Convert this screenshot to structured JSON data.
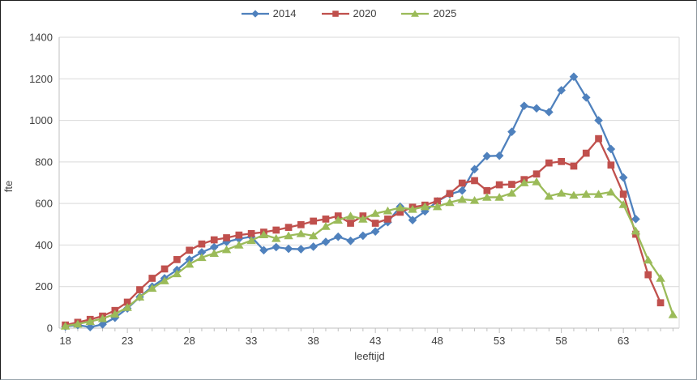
{
  "chart": {
    "legend": [
      {
        "label": "2014"
      },
      {
        "label": "2020"
      },
      {
        "label": "2025"
      }
    ],
    "colors": {
      "series_2014": "#4F81BD",
      "series_2020": "#C0504D",
      "series_2025": "#9BBB59",
      "gridline": "#d9d9d9",
      "axis_line": "#bfbfbf",
      "tick_text": "#404040"
    }
  },
  "chart_data": {
    "type": "line",
    "title": "",
    "xlabel": "leeftijd",
    "ylabel": "fte",
    "xlim": [
      17.5,
      67.5
    ],
    "ylim": [
      0,
      1400
    ],
    "xticks": [
      18,
      23,
      28,
      33,
      38,
      43,
      48,
      53,
      58,
      63
    ],
    "yticks": [
      0,
      200,
      400,
      600,
      800,
      1000,
      1200,
      1400
    ],
    "grid": "horizontal",
    "legend_position": "top",
    "x": [
      18,
      19,
      20,
      21,
      22,
      23,
      24,
      25,
      26,
      27,
      28,
      29,
      30,
      31,
      32,
      33,
      34,
      35,
      36,
      37,
      38,
      39,
      40,
      41,
      42,
      43,
      44,
      45,
      46,
      47,
      48,
      49,
      50,
      51,
      52,
      53,
      54,
      55,
      56,
      57,
      58,
      59,
      60,
      61,
      62,
      63,
      64,
      65,
      66,
      67
    ],
    "series": [
      {
        "name": "2014",
        "color": "#4F81BD",
        "marker": "diamond",
        "values": [
          8,
          15,
          5,
          18,
          50,
          95,
          150,
          200,
          240,
          280,
          330,
          365,
          390,
          415,
          430,
          440,
          375,
          390,
          382,
          380,
          392,
          415,
          440,
          420,
          445,
          465,
          510,
          585,
          520,
          562,
          610,
          645,
          662,
          765,
          828,
          830,
          945,
          1070,
          1058,
          1040,
          1145,
          1210,
          1110,
          1000,
          862,
          725,
          525,
          null,
          null,
          null
        ]
      },
      {
        "name": "2020",
        "color": "#C0504D",
        "marker": "square",
        "values": [
          15,
          28,
          42,
          58,
          85,
          125,
          185,
          240,
          285,
          330,
          375,
          405,
          425,
          435,
          448,
          455,
          462,
          472,
          485,
          498,
          515,
          525,
          540,
          505,
          540,
          505,
          525,
          558,
          582,
          592,
          612,
          648,
          698,
          710,
          662,
          690,
          692,
          715,
          742,
          795,
          802,
          780,
          842,
          912,
          785,
          645,
          452,
          257,
          122,
          null
        ]
      },
      {
        "name": "2025",
        "color": "#9BBB59",
        "marker": "triangle",
        "values": [
          10,
          20,
          32,
          46,
          68,
          100,
          150,
          192,
          228,
          262,
          308,
          340,
          360,
          378,
          400,
          422,
          450,
          432,
          445,
          455,
          445,
          490,
          520,
          540,
          525,
          552,
          565,
          580,
          572,
          585,
          585,
          605,
          620,
          615,
          630,
          630,
          650,
          700,
          705,
          635,
          650,
          640,
          645,
          645,
          655,
          595,
          468,
          328,
          240,
          65
        ]
      }
    ]
  }
}
